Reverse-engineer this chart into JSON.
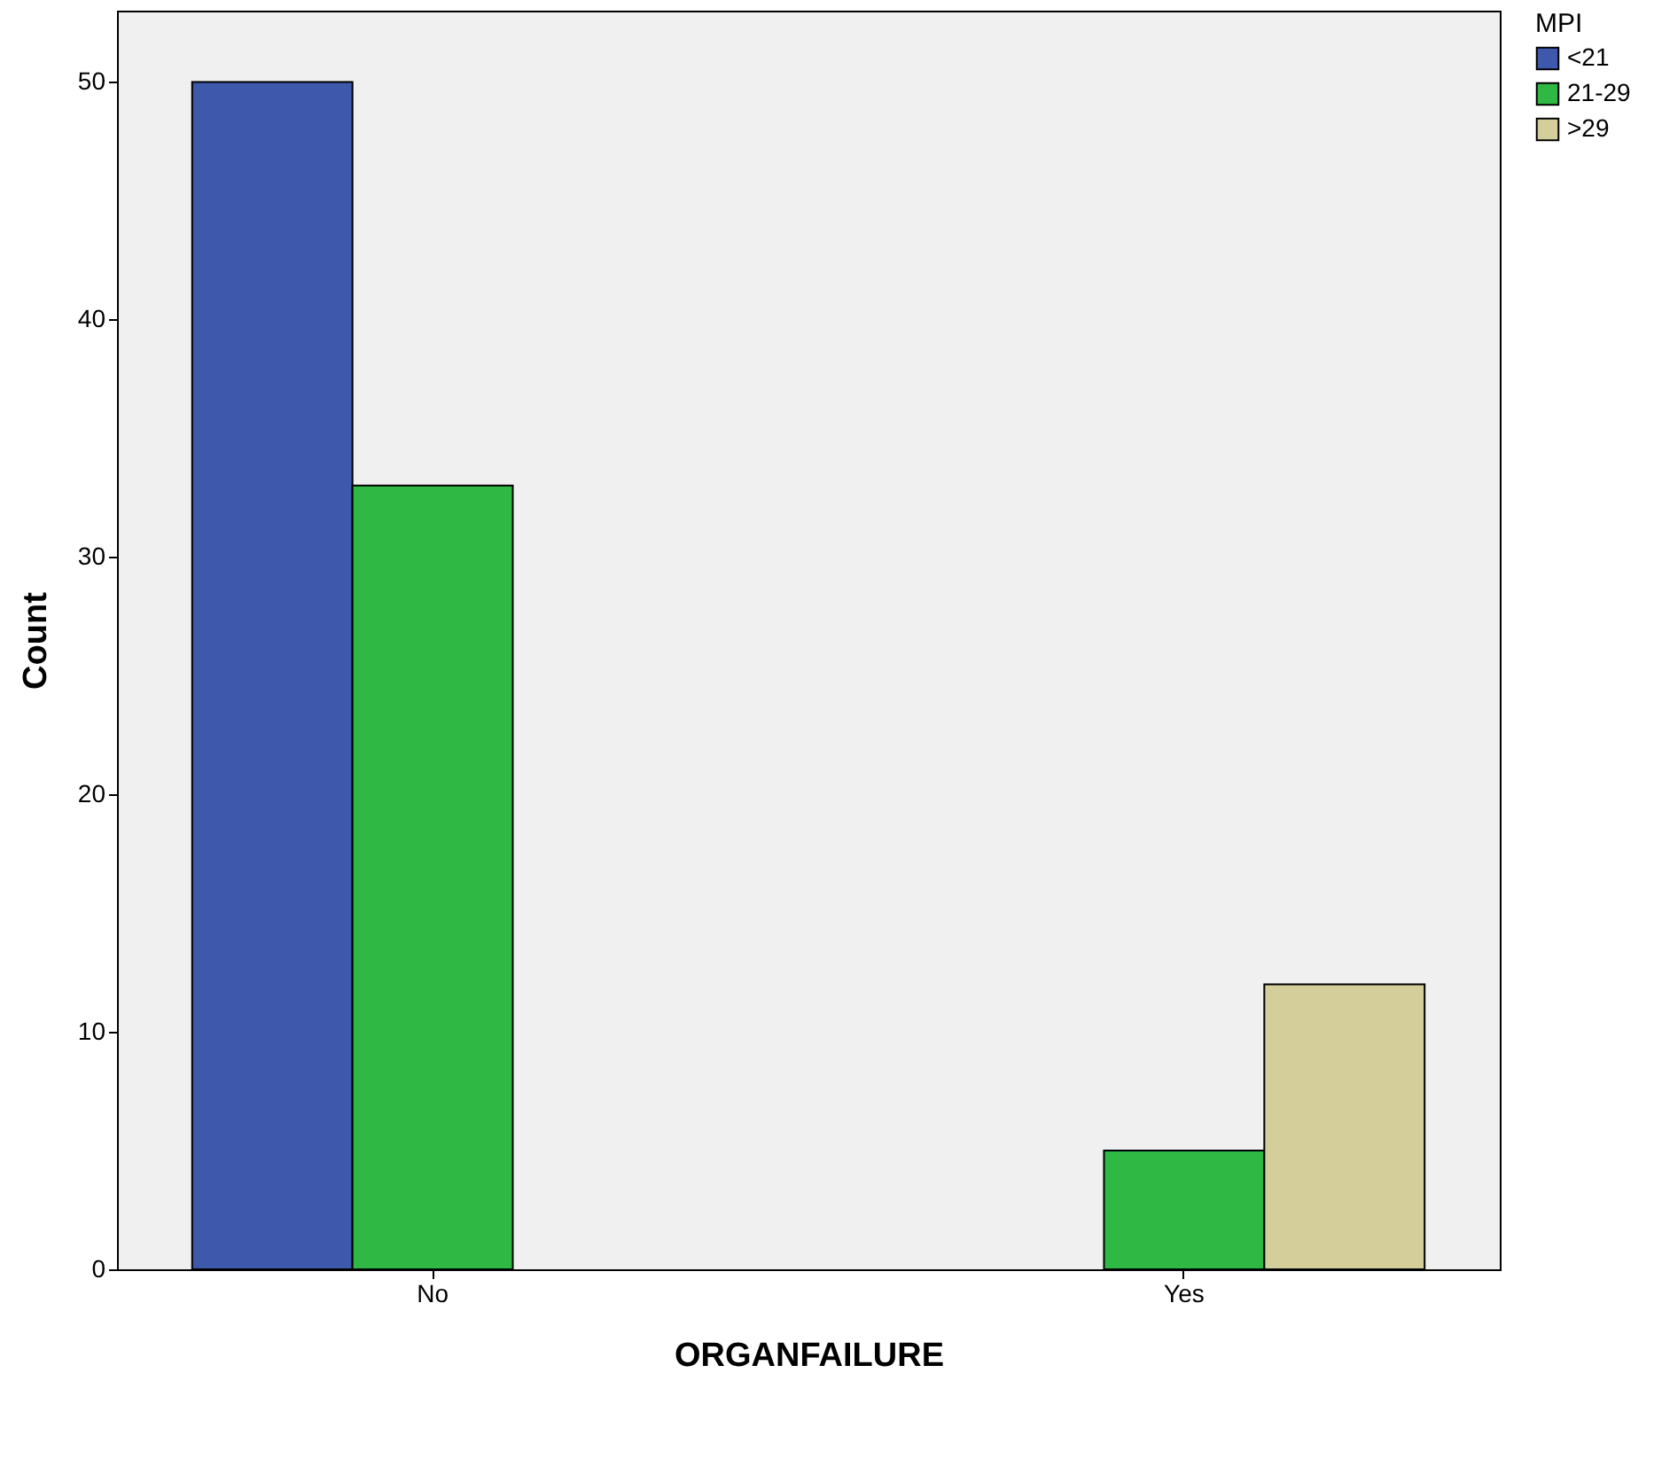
{
  "chart_data": {
    "type": "bar",
    "xlabel": "ORGANFAILURE",
    "ylabel": "Count",
    "legend_title": "MPI",
    "categories": [
      "No",
      "Yes"
    ],
    "series": [
      {
        "name": "<21",
        "color": "#3e58ac",
        "values": [
          50,
          null
        ]
      },
      {
        "name": "21-29",
        "color": "#2fb844",
        "values": [
          33,
          5
        ]
      },
      {
        "name": ">29",
        "color": "#d4cf9a",
        "values": [
          null,
          12
        ]
      }
    ],
    "ylim": [
      0,
      53
    ],
    "yticks": [
      0,
      10,
      20,
      30,
      40,
      50
    ],
    "grid": false,
    "legend": "top right"
  }
}
